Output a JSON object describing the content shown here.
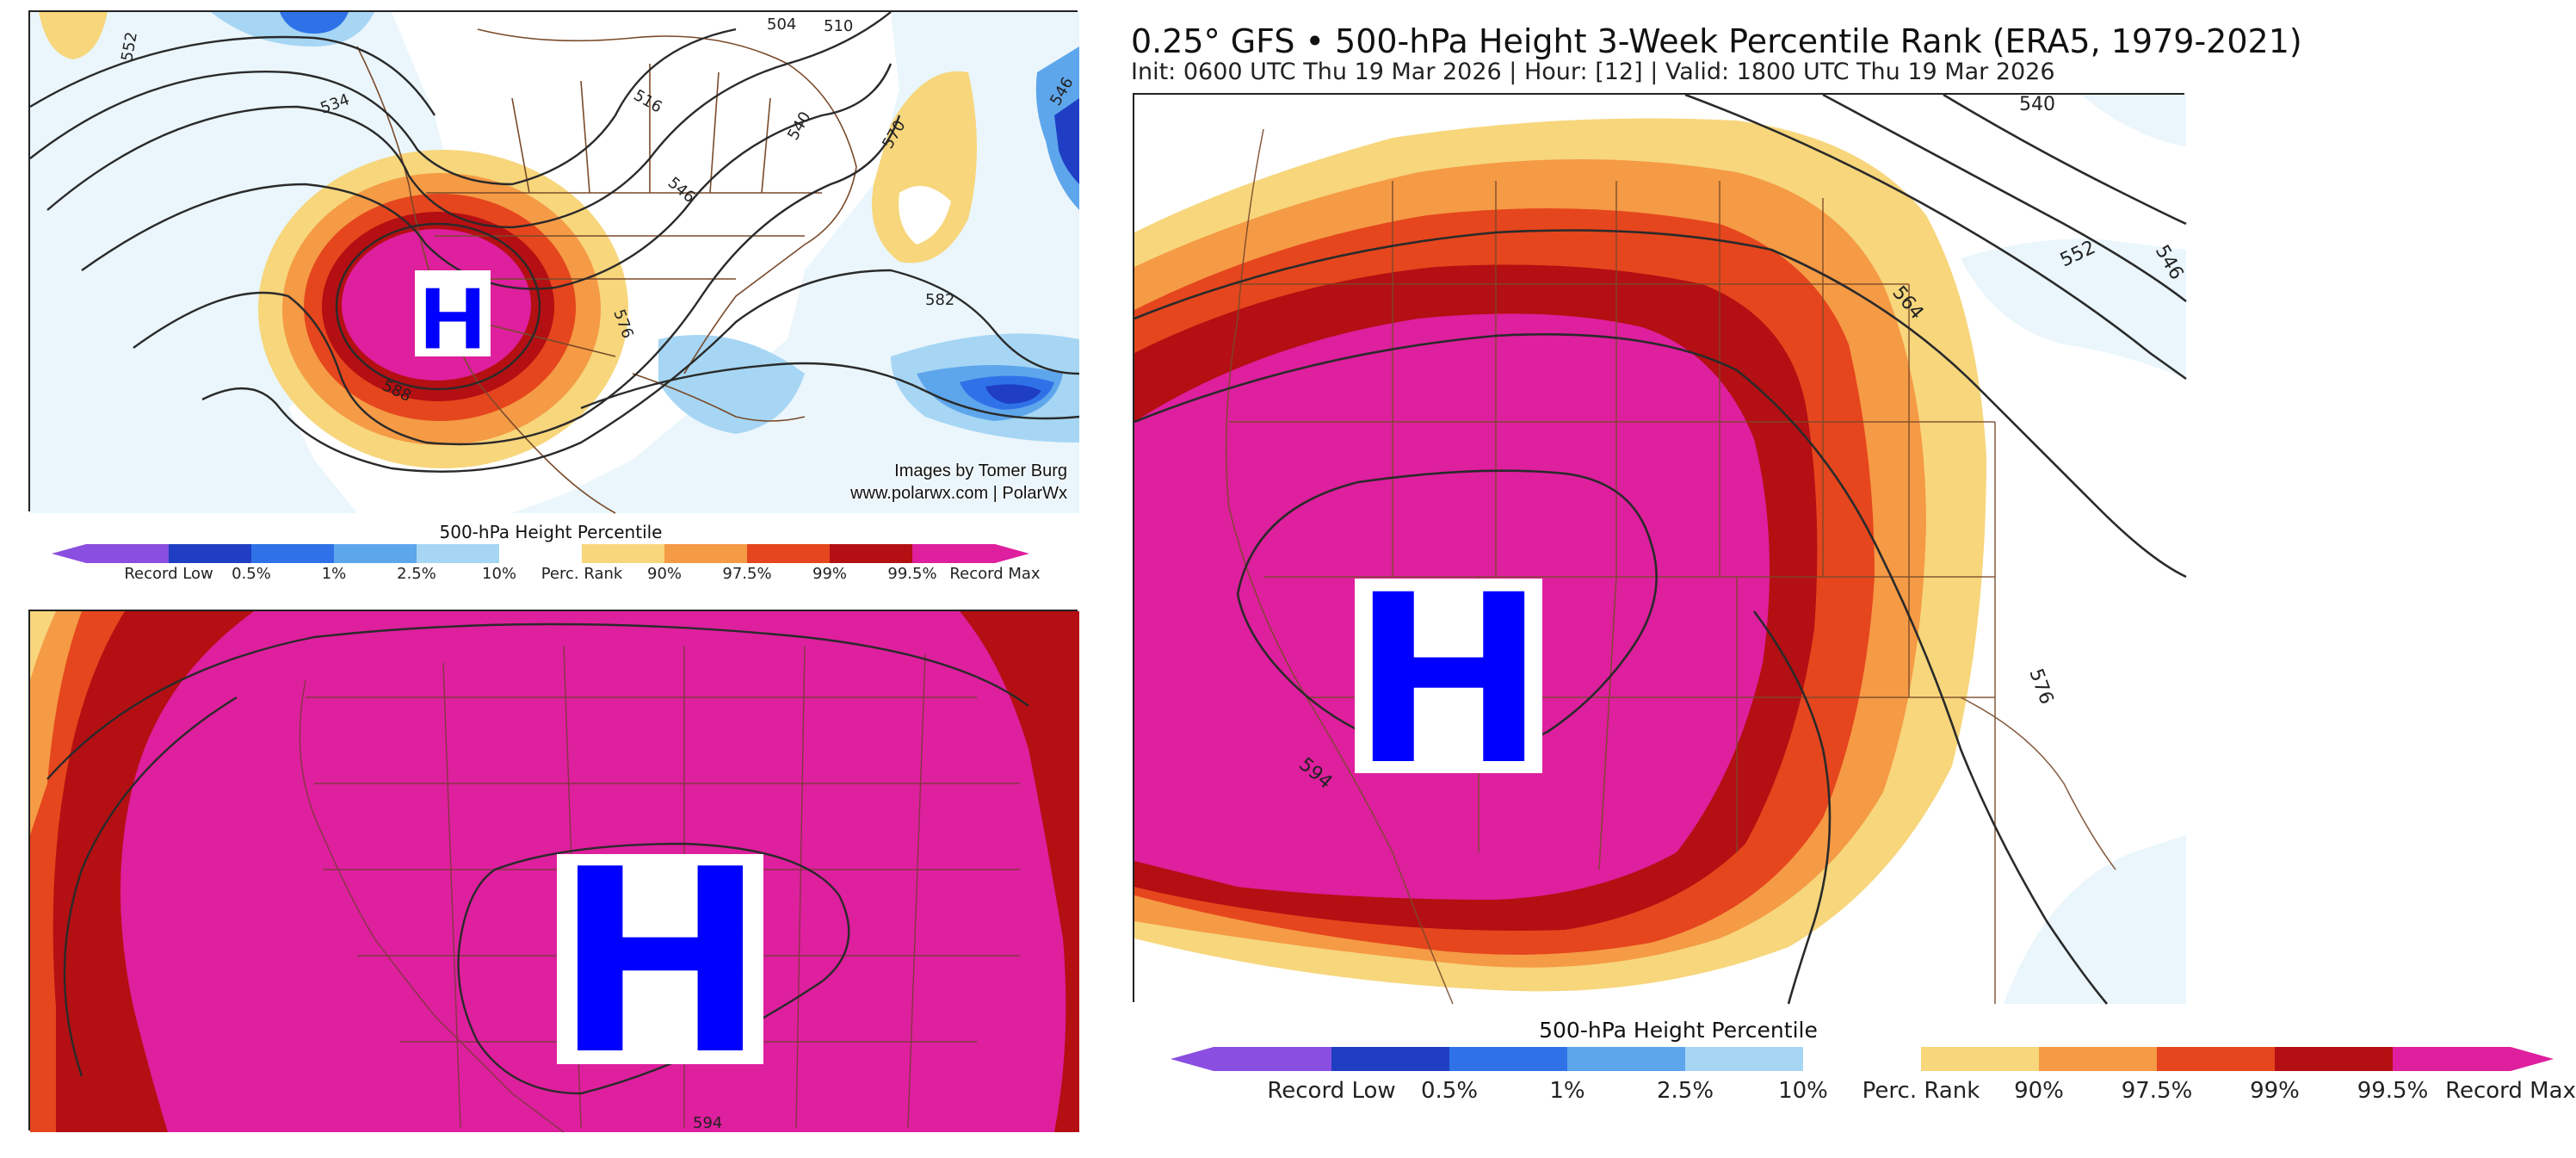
{
  "title": "0.25° GFS • 500-hPa Height 3-Week Percentile Rank (ERA5, 1979-2021)",
  "subtitle": "Init: 0600 UTC Thu 19 Mar 2026 | Hour: [12] | Valid: 1800 UTC Thu 19 Mar 2026",
  "credit": {
    "line1": "Images by Tomer Burg",
    "line2": "www.polarwx.com | PolarWx"
  },
  "high_symbol": "H",
  "colorbar": {
    "title": "500-hPa Height Percentile",
    "labels": [
      "Record Low",
      "0.5%",
      "1%",
      "2.5%",
      "10%",
      "Perc. Rank",
      "90%",
      "97.5%",
      "99%",
      "99.5%",
      "Record Max"
    ],
    "colors": [
      "#8a4fe0",
      "#1f3ec4",
      "#2f72e8",
      "#5ea6ec",
      "#a6d6f4",
      "#ffffff",
      "#f7d67c",
      "#f59a45",
      "#e5461d",
      "#b40f12",
      "#de1f9e"
    ]
  },
  "panels": {
    "top_left": {
      "contours": [
        "552",
        "534",
        "504",
        "510",
        "516",
        "540",
        "546",
        "546",
        "570",
        "576",
        "582",
        "588"
      ]
    },
    "bottom_left": {
      "contours": [
        "594"
      ]
    },
    "right": {
      "contours": [
        "540",
        "546",
        "552",
        "564",
        "576",
        "594"
      ]
    }
  },
  "colors": {
    "record_max": "#de1f9e",
    "p99_5": "#b40f12",
    "p99": "#e5461d",
    "p97_5": "#f59a45",
    "p90": "#f7d67c",
    "neutral": "#ffffff",
    "p10": "#a6d6f4",
    "p2_5": "#5ea6ec",
    "p1": "#2f72e8",
    "p0_5": "#1f3ec4",
    "record_low": "#8a4fe0",
    "high_fill": "#0000ff",
    "contour": "#2a2a2a",
    "border": "#7a4a2a"
  }
}
